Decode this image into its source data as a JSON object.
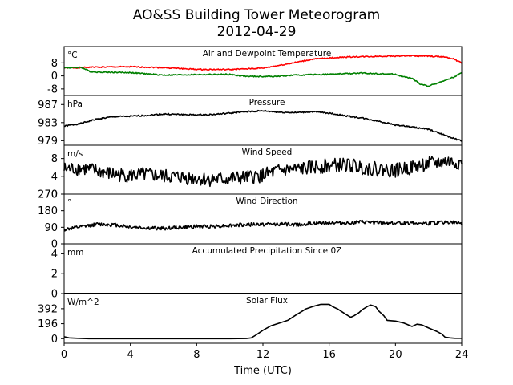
{
  "figure": {
    "title": "AO&SS Building Tower Meteorogram",
    "subtitle": "2012-04-29",
    "xlabel": "Time (UTC)"
  },
  "chart_data": [
    {
      "type": "line",
      "title": "Air and Dewpoint Temperature",
      "unit": "°C",
      "xlim": [
        0,
        24
      ],
      "ylim": [
        -12,
        18
      ],
      "yticks": [
        -8,
        0,
        8
      ],
      "series": [
        {
          "color": "#ff0000",
          "x": [
            0,
            1,
            1.5,
            2,
            4,
            6,
            8,
            10,
            11,
            12,
            13,
            14,
            15,
            16,
            17,
            18,
            19,
            20,
            21,
            22,
            23,
            23.5,
            24
          ],
          "y": [
            5,
            5,
            5.3,
            5.4,
            5.6,
            5.1,
            4.0,
            3.9,
            4.3,
            4.8,
            6.5,
            8.3,
            10.2,
            11.0,
            11.6,
            11.8,
            12.0,
            12.2,
            12.3,
            12.1,
            11.6,
            10.5,
            7.8
          ]
        },
        {
          "color": "#008000",
          "x": [
            0,
            0.5,
            1,
            1.3,
            1.6,
            2,
            4,
            6,
            8,
            10,
            11,
            12,
            13,
            14,
            16,
            18,
            19,
            20,
            20.5,
            21,
            21.5,
            22,
            22.5,
            23,
            23.5,
            24
          ],
          "y": [
            5,
            5,
            5.3,
            4.0,
            2.6,
            2.4,
            2.0,
            0.5,
            0.8,
            0.9,
            -0.3,
            -0.4,
            -0.2,
            0.5,
            1.0,
            1.7,
            1.3,
            1.0,
            -0.6,
            -1.6,
            -5.0,
            -6.3,
            -4.5,
            -2.8,
            -0.8,
            1.8
          ]
        }
      ]
    },
    {
      "type": "line",
      "title": "Pressure",
      "unit": "hPa",
      "xlim": [
        0,
        24
      ],
      "ylim": [
        978,
        989
      ],
      "yticks": [
        979,
        983,
        987
      ],
      "series": [
        {
          "color": "#000000",
          "x": [
            0,
            1,
            2,
            3,
            4,
            5,
            6,
            7,
            8,
            9,
            10,
            11,
            12,
            13,
            14,
            15,
            16,
            17,
            18,
            19,
            20,
            21,
            22,
            23,
            24
          ],
          "y": [
            982.2,
            982.8,
            983.8,
            984.3,
            984.4,
            984.6,
            984.9,
            984.8,
            984.7,
            984.8,
            985.1,
            985.4,
            985.6,
            985.3,
            985.2,
            985.4,
            985.1,
            984.5,
            984.0,
            983.3,
            982.5,
            982.0,
            981.5,
            980.2,
            978.9
          ]
        }
      ]
    },
    {
      "type": "line",
      "title": "Wind Speed",
      "unit": "m/s",
      "xlim": [
        0,
        24
      ],
      "ylim": [
        0,
        11
      ],
      "yticks": [
        0,
        4,
        8
      ],
      "series": [
        {
          "color": "#000000",
          "x": [
            0,
            1,
            2,
            3,
            4,
            5,
            6,
            7,
            8,
            9,
            10,
            11,
            12,
            13,
            14,
            15,
            16,
            17,
            18,
            19,
            20,
            21,
            22,
            23,
            24
          ],
          "y": [
            5.6,
            5.8,
            5.2,
            4.4,
            4.2,
            4.4,
            4.0,
            3.8,
            3.5,
            3.3,
            3.4,
            3.7,
            4.2,
            5.3,
            5.5,
            6.0,
            6.4,
            6.6,
            6.0,
            5.6,
            5.3,
            6.0,
            6.8,
            7.3,
            7.0
          ]
        }
      ]
    },
    {
      "type": "line",
      "title": "Wind Direction",
      "unit": "°",
      "xlim": [
        0,
        24
      ],
      "ylim": [
        0,
        270
      ],
      "yticks": [
        0,
        90,
        180,
        270
      ],
      "series": [
        {
          "color": "#000000",
          "x": [
            0,
            1,
            2,
            3,
            4,
            5,
            6,
            7,
            8,
            9,
            10,
            11,
            12,
            13,
            14,
            15,
            16,
            17,
            18,
            19,
            20,
            21,
            22,
            23,
            24
          ],
          "y": [
            78,
            92,
            106,
            104,
            92,
            86,
            84,
            90,
            94,
            96,
            100,
            104,
            106,
            108,
            104,
            110,
            116,
            112,
            118,
            114,
            112,
            114,
            110,
            118,
            112
          ]
        }
      ]
    },
    {
      "type": "line",
      "title": "Accumulated Precipitation Since 0Z",
      "unit": "mm",
      "xlim": [
        0,
        24
      ],
      "ylim": [
        0,
        5
      ],
      "yticks": [
        0,
        2,
        4
      ],
      "series": [
        {
          "color": "#000000",
          "x": [
            0,
            24
          ],
          "y": [
            0,
            0
          ]
        }
      ]
    },
    {
      "type": "line",
      "title": "Solar Flux",
      "unit": "W/m^2",
      "xlim": [
        0,
        24
      ],
      "ylim": [
        -60,
        590
      ],
      "yticks": [
        0,
        196,
        392
      ],
      "series": [
        {
          "color": "#000000",
          "x": [
            0,
            0.3,
            0.8,
            1.5,
            3,
            6,
            9,
            10,
            11,
            11.3,
            11.6,
            12,
            12.5,
            13,
            13.5,
            14,
            14.3,
            14.6,
            15,
            15.5,
            16,
            16.2,
            16.5,
            17,
            17.3,
            17.5,
            17.8,
            18,
            18.3,
            18.5,
            18.8,
            19,
            19.3,
            19.5,
            20,
            20.5,
            21,
            21.3,
            21.6,
            22,
            22.5,
            22.8,
            23,
            23.3,
            23.6,
            24
          ],
          "y": [
            25,
            10,
            5,
            0,
            0,
            0,
            0,
            0,
            2,
            10,
            50,
            110,
            170,
            205,
            240,
            310,
            350,
            390,
            420,
            450,
            450,
            420,
            390,
            320,
            280,
            300,
            340,
            380,
            420,
            440,
            420,
            360,
            300,
            240,
            230,
            205,
            160,
            190,
            180,
            140,
            95,
            60,
            20,
            10,
            5,
            5
          ]
        }
      ]
    }
  ],
  "x_ticks": [
    "0",
    "4",
    "8",
    "12",
    "16",
    "20",
    "24"
  ]
}
